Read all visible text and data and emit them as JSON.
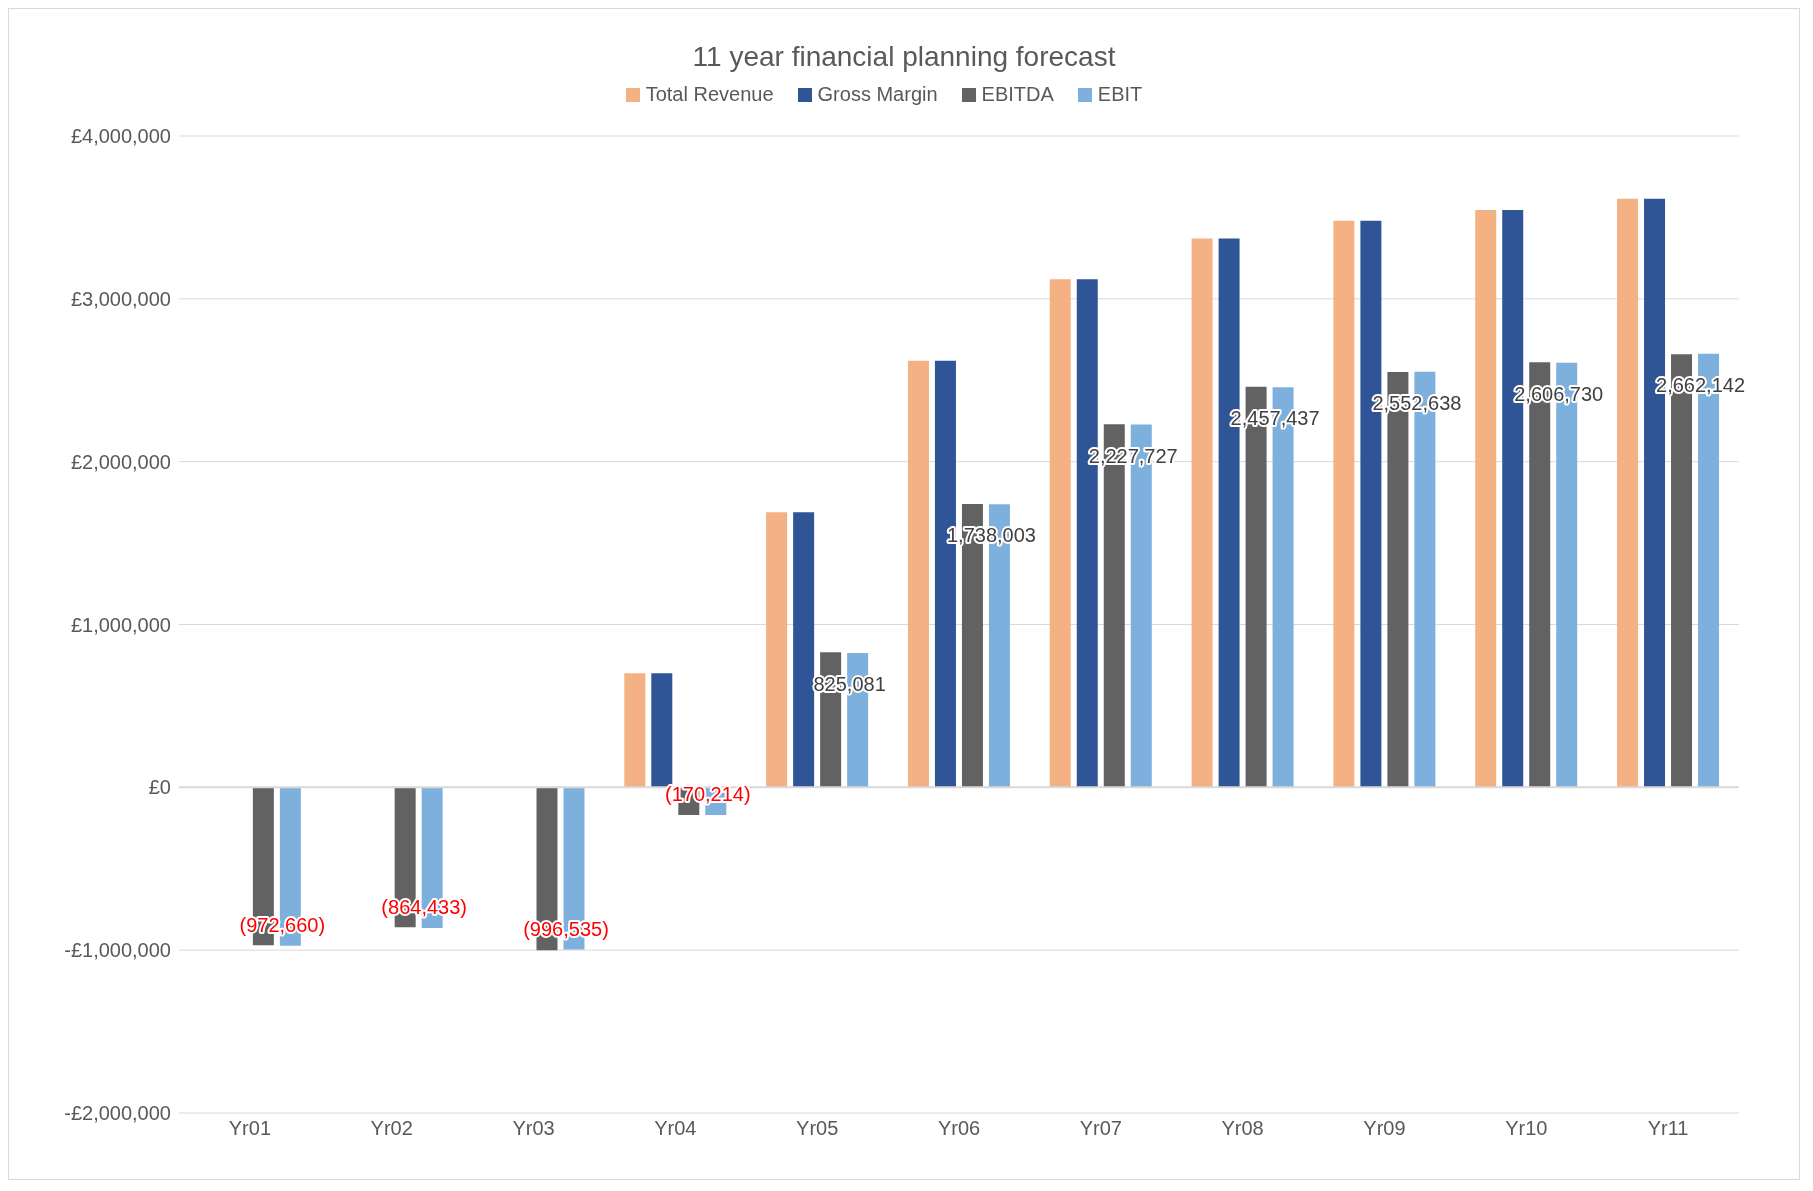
{
  "chart_data": {
    "type": "bar",
    "title": "11 year financial planning forecast",
    "categories": [
      "Yr01",
      "Yr02",
      "Yr03",
      "Yr04",
      "Yr05",
      "Yr06",
      "Yr07",
      "Yr08",
      "Yr09",
      "Yr10",
      "Yr11"
    ],
    "series": [
      {
        "name": "Total Revenue",
        "color": "#f4b183",
        "values": [
          0,
          0,
          0,
          700000,
          1690000,
          2620000,
          3120000,
          3370000,
          3480000,
          3545000,
          3615000
        ]
      },
      {
        "name": "Gross Margin",
        "color": "#2f5597",
        "values": [
          0,
          0,
          0,
          700000,
          1690000,
          2620000,
          3120000,
          3370000,
          3480000,
          3545000,
          3615000
        ]
      },
      {
        "name": "EBITDA",
        "color": "#626262",
        "values": [
          -970000,
          -860000,
          -1000000,
          -170000,
          830000,
          1740000,
          2230000,
          2460000,
          2550000,
          2610000,
          2660000
        ]
      },
      {
        "name": "EBIT",
        "color": "#7eb0de",
        "values": [
          -972660,
          -864433,
          -996535,
          -170214,
          825081,
          1738003,
          2227727,
          2457437,
          2552638,
          2606730,
          2662142
        ],
        "value_labels": [
          "(972,660)",
          "(864,433)",
          "(996,535)",
          "(170,214)",
          "825,081",
          "1,738,003",
          "2,227,727",
          "2,457,437",
          "2,552,638",
          "2,606,730",
          "2,662,142"
        ]
      }
    ],
    "ylim": [
      -2000000,
      4000000
    ],
    "yticks": [
      {
        "value": -2000000,
        "label": "-£2,000,000"
      },
      {
        "value": -1000000,
        "label": "-£1,000,000"
      },
      {
        "value": 0,
        "label": "£0"
      },
      {
        "value": 1000000,
        "label": "£1,000,000"
      },
      {
        "value": 2000000,
        "label": "£2,000,000"
      },
      {
        "value": 3000000,
        "label": "£3,000,000"
      },
      {
        "value": 4000000,
        "label": "£4,000,000"
      }
    ],
    "grid": "y",
    "legend": "top"
  }
}
